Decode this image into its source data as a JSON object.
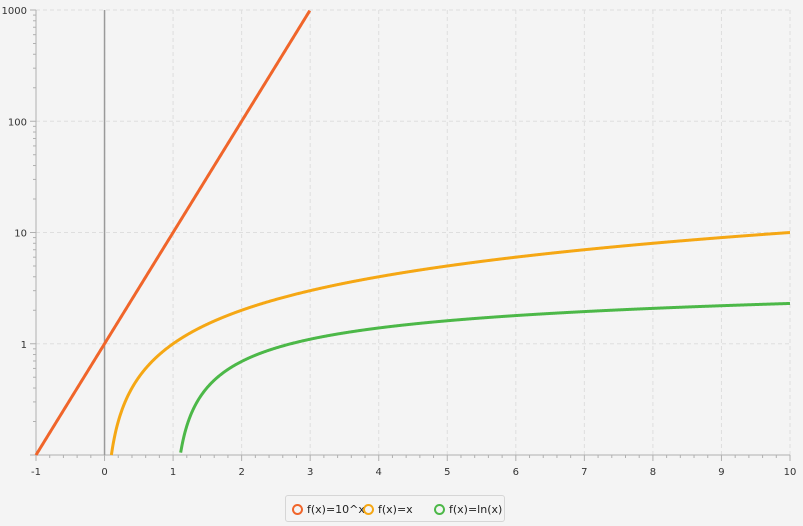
{
  "chart_data": {
    "type": "line",
    "title": "",
    "xlabel": "",
    "ylabel": "",
    "xlim": [
      -1,
      10
    ],
    "ylim": [
      0.1,
      1000
    ],
    "y_scale": "log",
    "grid": true,
    "legend_position": "bottom",
    "x_ticks": [
      "-1",
      "0",
      "1",
      "2",
      "3",
      "4",
      "5",
      "6",
      "7",
      "8",
      "9",
      "10"
    ],
    "y_ticks": [
      {
        "value": 1,
        "label": "1"
      },
      {
        "value": 10,
        "label": "10"
      },
      {
        "value": 100,
        "label": "100"
      },
      {
        "value": 1000,
        "label": "1000"
      }
    ],
    "series": [
      {
        "name": "f(x)=10^x",
        "function": "10^x",
        "color": "#f0652a"
      },
      {
        "name": "f(x)=x",
        "function": "x",
        "color": "#f5a714"
      },
      {
        "name": "f(x)=ln(x)",
        "function": "ln(x)",
        "color": "#4cb848"
      }
    ]
  }
}
